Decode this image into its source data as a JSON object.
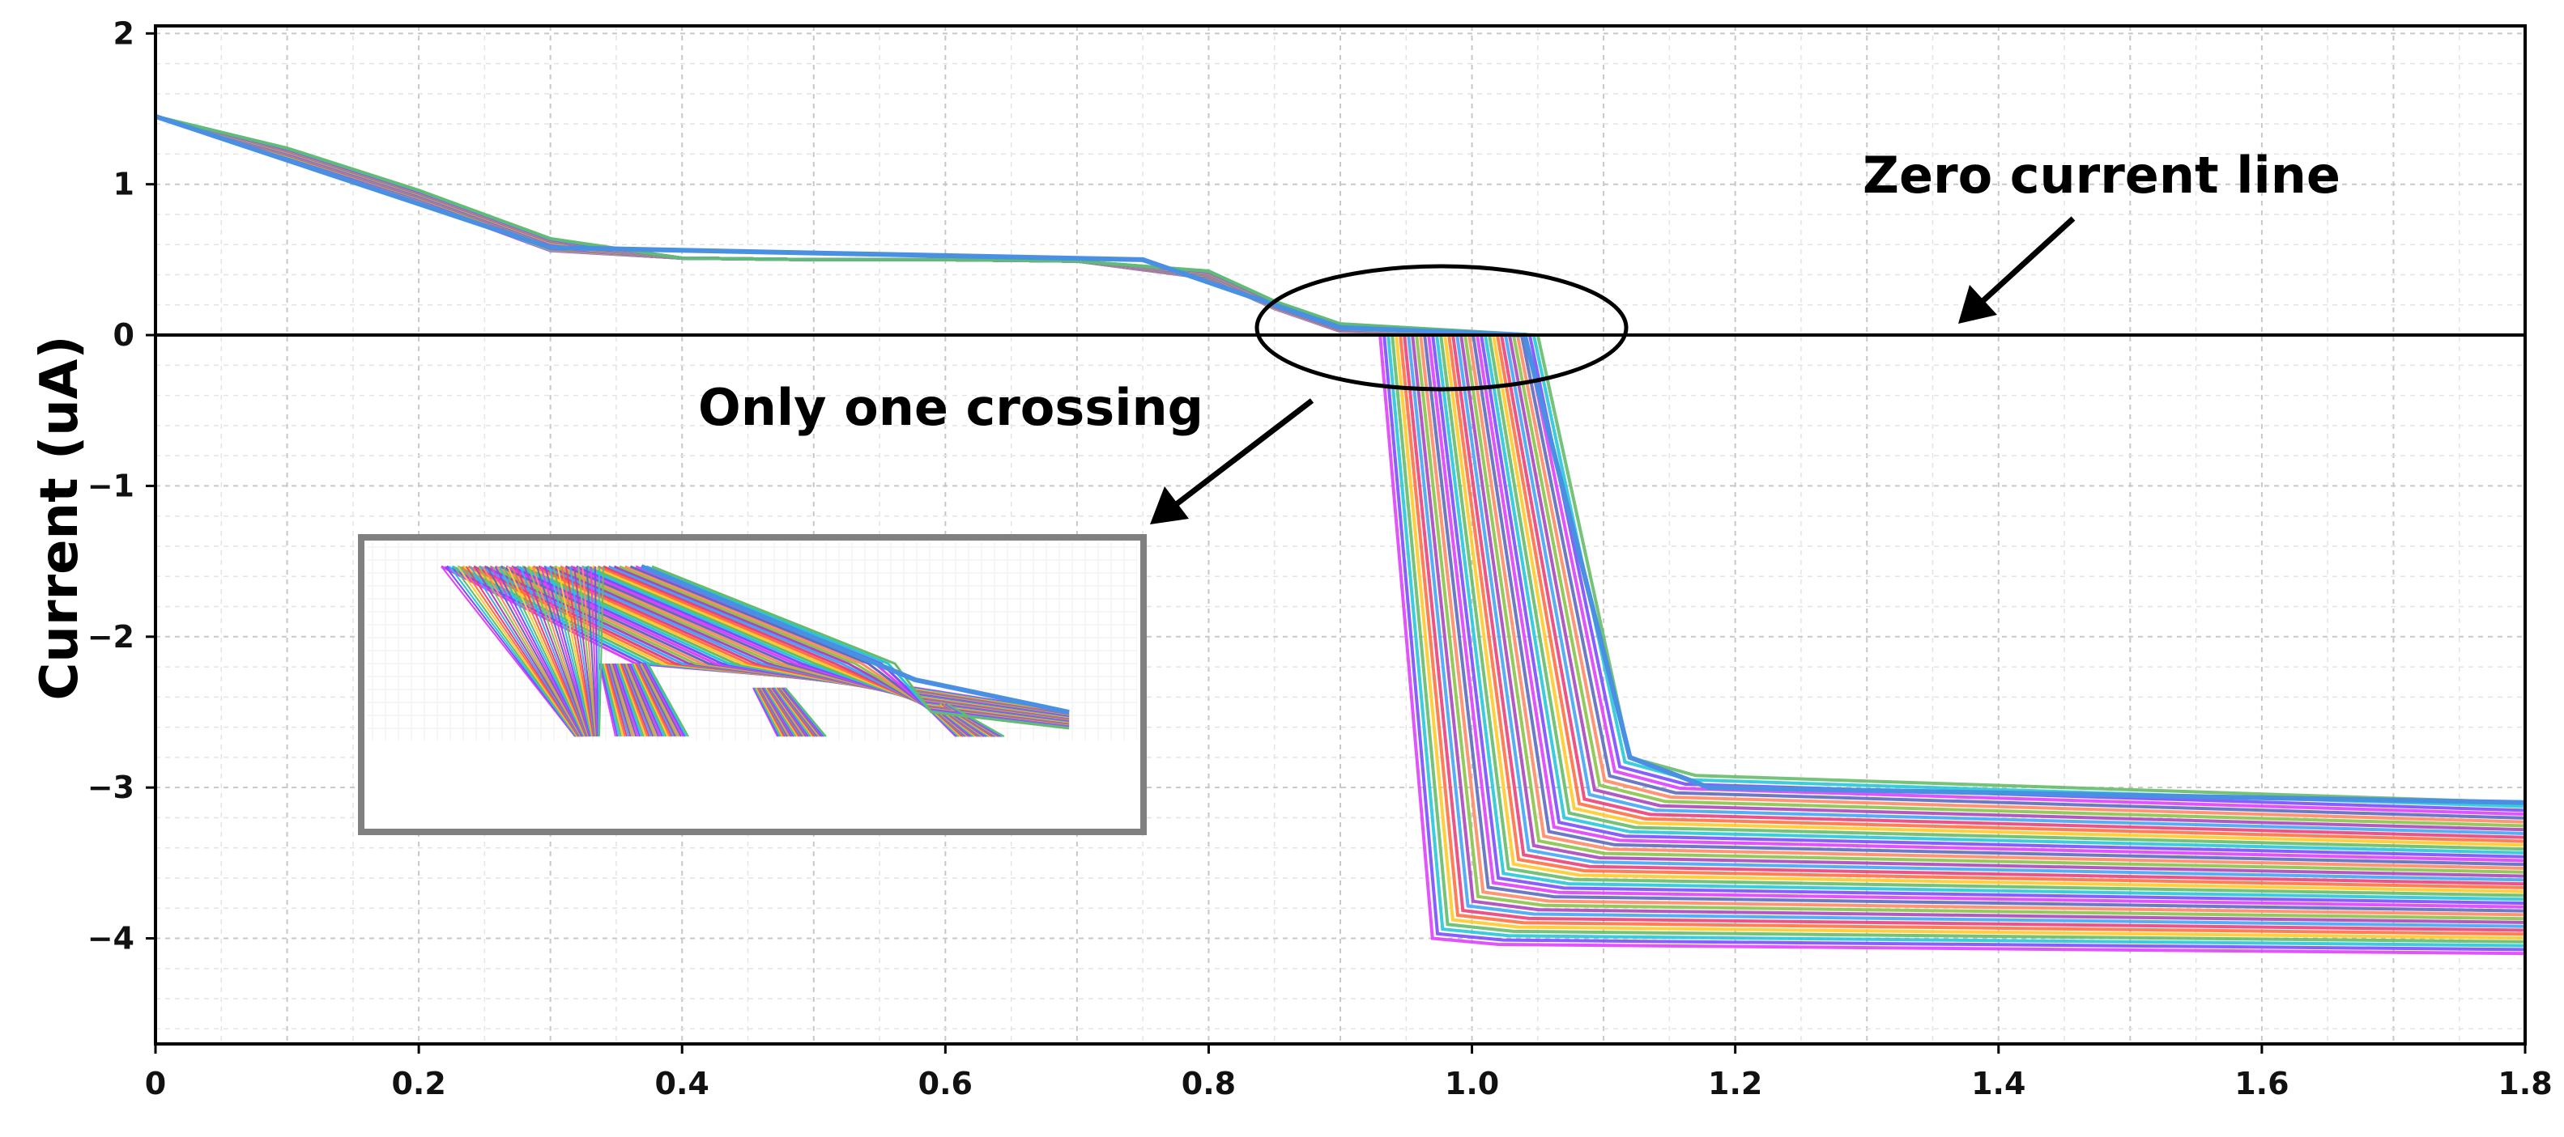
{
  "chart_data": {
    "type": "line",
    "title": "",
    "xlabel": "",
    "ylabel": "Current (uA)",
    "xlim": [
      0,
      1.8
    ],
    "ylim": [
      -4.7,
      2.05
    ],
    "x_ticks": [
      0,
      0.2,
      0.4,
      0.6,
      0.8,
      1.0,
      1.2,
      1.4,
      1.6,
      1.8
    ],
    "x_tick_labels": [
      "0",
      "0.2",
      "0.4",
      "0.6",
      "0.8",
      "1.0",
      "1.2",
      "1.4",
      "1.6",
      "1.8"
    ],
    "y_ticks": [
      2,
      1,
      0,
      -1,
      -2,
      -3,
      -4
    ],
    "y_tick_labels": [
      "2",
      "1",
      "0",
      "−1",
      "−2",
      "−3",
      "−4"
    ],
    "grid": true,
    "zero_line": 0,
    "sweep": {
      "count": 40,
      "common_x": [
        0,
        0.1,
        0.2,
        0.3,
        0.4,
        0.5,
        0.6,
        0.7,
        0.8,
        0.85,
        0.9
      ],
      "common_y": [
        1.45,
        1.2,
        0.92,
        0.6,
        0.51,
        0.5,
        0.5,
        0.49,
        0.4,
        0.2,
        0.05
      ],
      "drop_x_range": [
        0.93,
        1.05
      ],
      "foot_x_range": [
        0.97,
        1.12
      ],
      "foot_y_range": [
        -4.0,
        -2.8
      ],
      "end_x": 1.8,
      "end_y_range": [
        -4.1,
        -3.1
      ]
    },
    "annotations": {
      "zero_line_label": "Zero current line",
      "crossing_label": "Only one crossing"
    }
  },
  "palette": [
    "#e040fb",
    "#7c4dff",
    "#26c6da",
    "#66bb6a",
    "#ffca28",
    "#ff7043",
    "#ec407a",
    "#42a5f5",
    "#ab47bc",
    "#8bc34a",
    "#ff8a65",
    "#5c6bc0"
  ]
}
